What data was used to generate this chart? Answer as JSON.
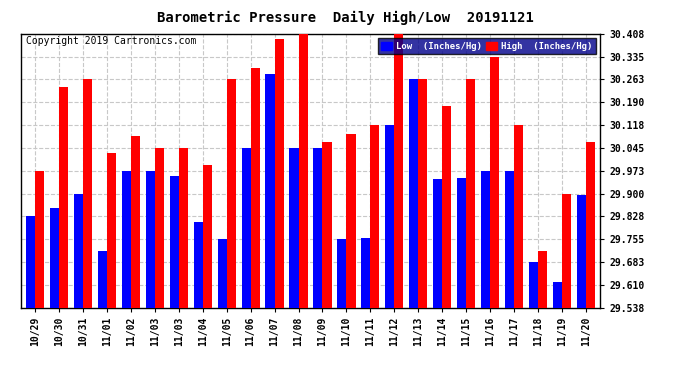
{
  "title": "Barometric Pressure  Daily High/Low  20191121",
  "copyright": "Copyright 2019 Cartronics.com",
  "low_color": "#0000ff",
  "high_color": "#ff0000",
  "bg_color": "#ffffff",
  "grid_color": "#c8c8c8",
  "categories": [
    "10/29",
    "10/30",
    "10/31",
    "11/01",
    "11/02",
    "11/03",
    "11/03",
    "11/04",
    "11/05",
    "11/06",
    "11/07",
    "11/08",
    "11/09",
    "11/10",
    "11/11",
    "11/12",
    "11/13",
    "11/14",
    "11/15",
    "11/16",
    "11/17",
    "11/18",
    "11/19",
    "11/20"
  ],
  "lows": [
    29.828,
    29.855,
    29.9,
    29.718,
    29.973,
    29.973,
    29.955,
    29.81,
    29.755,
    30.045,
    30.28,
    30.045,
    30.045,
    29.755,
    29.76,
    30.118,
    30.263,
    29.945,
    29.95,
    29.973,
    29.973,
    29.683,
    29.618,
    29.895
  ],
  "highs": [
    29.973,
    30.24,
    30.263,
    30.028,
    30.083,
    30.045,
    30.045,
    29.99,
    30.263,
    30.3,
    30.39,
    30.408,
    30.063,
    30.09,
    30.118,
    30.408,
    30.263,
    30.178,
    30.263,
    30.335,
    30.118,
    29.718,
    29.9,
    30.063
  ],
  "ylim_min": 29.538,
  "ylim_max": 30.408,
  "yticks": [
    29.538,
    29.61,
    29.683,
    29.755,
    29.828,
    29.9,
    29.973,
    30.045,
    30.118,
    30.19,
    30.263,
    30.335,
    30.408
  ],
  "title_fontsize": 10,
  "copyright_fontsize": 7,
  "tick_fontsize": 7,
  "bar_width": 0.38,
  "figwidth": 6.9,
  "figheight": 3.75,
  "dpi": 100
}
